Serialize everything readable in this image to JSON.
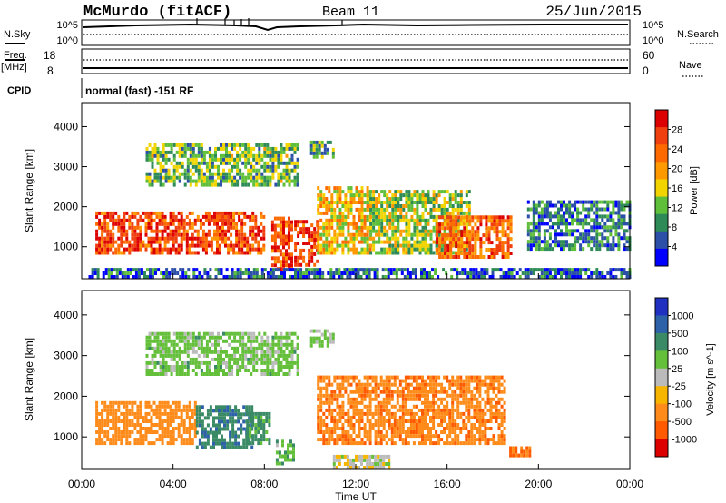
{
  "header": {
    "station": "McMurdo (fitACF)",
    "beam": "Beam 11",
    "date": "25/Jun/2015"
  },
  "status_panel": {
    "nsky_label": "N.Sky",
    "nsearch_label": "N.Search",
    "noise_ticks": [
      "10^5",
      "10^0"
    ],
    "noise_ticks_right": [
      "10^5",
      "10^0"
    ],
    "freq_label": "Freq.",
    "freq_unit": "[MHz]",
    "freq_ticks": [
      "18",
      "8"
    ],
    "nave_label": "Nave",
    "nave_ticks": [
      "60",
      "0"
    ],
    "cpid_label": "CPID",
    "cpid_text": "normal (fast) -151 RF"
  },
  "colors": {
    "power_scale": [
      "#0000ff",
      "#2c4fa8",
      "#2e8b57",
      "#5fbf3a",
      "#f2d500",
      "#ff9900",
      "#ff6a00",
      "#f04010",
      "#dd0000"
    ],
    "velocity_scale": [
      "#2030c0",
      "#2e62a8",
      "#3a8a66",
      "#64bf3a",
      "#bbbbbb",
      "#f7b500",
      "#ff8c1a",
      "#ff5a00",
      "#dd0000"
    ],
    "ground_scatter": "#bbbbbb"
  },
  "chart_data": [
    {
      "type": "heatmap",
      "panel": "power",
      "ylabel": "Slant Range [km]",
      "yticks": [
        "1000",
        "2000",
        "3000",
        "4000"
      ],
      "ylim": [
        200,
        4600
      ],
      "xticks": [
        "00:00",
        "04:00",
        "08:00",
        "12:00",
        "16:00",
        "20:00",
        "00:00"
      ],
      "xlim_hours": [
        0,
        24
      ],
      "colorbar": {
        "label": "Power [dB]",
        "ticks": [
          "4",
          "8",
          "12",
          "16",
          "20",
          "24",
          "28"
        ],
        "range": [
          0,
          32
        ]
      },
      "regions": [
        {
          "t0": 0.6,
          "t1": 8.0,
          "r0": 800,
          "r1": 1800,
          "value": 26
        },
        {
          "t0": 8.3,
          "t1": 9.2,
          "r0": 400,
          "r1": 1700,
          "value": 26
        },
        {
          "t0": 9.3,
          "t1": 10.3,
          "r0": 500,
          "r1": 1600,
          "value": 27
        },
        {
          "t0": 10.3,
          "t1": 12.6,
          "r0": 800,
          "r1": 2500,
          "value": 18
        },
        {
          "t0": 12.6,
          "t1": 17.0,
          "r0": 800,
          "r1": 2400,
          "value": 14
        },
        {
          "t0": 15.5,
          "t1": 18.8,
          "r0": 700,
          "r1": 1700,
          "value": 24
        },
        {
          "t0": 2.8,
          "t1": 9.5,
          "r0": 2500,
          "r1": 3500,
          "value": 12
        },
        {
          "t0": 10.0,
          "t1": 11.0,
          "r0": 3200,
          "r1": 3600,
          "value": 10
        },
        {
          "t0": 0.3,
          "t1": 24.0,
          "r0": 200,
          "r1": 400,
          "value": 6
        },
        {
          "t0": 19.5,
          "t1": 24.0,
          "r0": 900,
          "r1": 2100,
          "value": 8
        }
      ]
    },
    {
      "type": "heatmap",
      "panel": "velocity",
      "ylabel": "Slant Range [km]",
      "yticks": [
        "1000",
        "2000",
        "3000",
        "4000"
      ],
      "ylim": [
        200,
        4600
      ],
      "xticks": [
        "00:00",
        "04:00",
        "08:00",
        "12:00",
        "16:00",
        "20:00",
        "00:00"
      ],
      "xlabel": "Time UT",
      "xlim_hours": [
        0,
        24
      ],
      "colorbar": {
        "label": "Velocity [m s^-1]",
        "ticks": [
          "1000",
          "500",
          "100",
          "25",
          "-25",
          "-100",
          "-500",
          "-1000"
        ]
      },
      "regions": [
        {
          "t0": 0.6,
          "t1": 5.0,
          "r0": 800,
          "r1": 1800,
          "value": -300
        },
        {
          "t0": 5.0,
          "t1": 7.5,
          "r0": 700,
          "r1": 1700,
          "value": 400
        },
        {
          "t0": 7.2,
          "t1": 8.2,
          "r0": 800,
          "r1": 1600,
          "value": 150
        },
        {
          "t0": 8.5,
          "t1": 9.3,
          "r0": 300,
          "r1": 900,
          "value": 80
        },
        {
          "t0": 10.3,
          "t1": 18.5,
          "r0": 800,
          "r1": 2500,
          "value": -400
        },
        {
          "t0": 18.6,
          "t1": 19.6,
          "r0": 500,
          "r1": 700,
          "value": -600
        },
        {
          "t0": 2.8,
          "t1": 9.5,
          "r0": 2500,
          "r1": 3500,
          "value": 50
        },
        {
          "t0": 10.0,
          "t1": 11.0,
          "r0": 3200,
          "r1": 3600,
          "value": 30
        },
        {
          "t0": 11.0,
          "t1": 13.5,
          "r0": 200,
          "r1": 500,
          "value": 0
        }
      ]
    }
  ]
}
